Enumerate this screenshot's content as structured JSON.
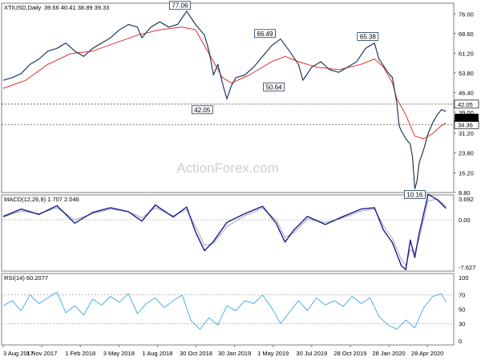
{
  "chart_data": {
    "type": "line",
    "watermark": "ActionForex.com",
    "price": {
      "symbol_title": "XTIUSD,Daily",
      "ohlc": "39.66 40.41 38.89 39.33",
      "yaxis": {
        "min": 8.8,
        "max": 80,
        "ticks": [
          "76.00",
          "68.60",
          "61.20",
          "53.80",
          "46.40",
          "39.00",
          "31.20",
          "23.80",
          "16.20",
          "8.80"
        ]
      },
      "last_price": "39.33",
      "levels": [
        {
          "value": 42.05,
          "label": "42.05"
        },
        {
          "value": 34.36,
          "label": "34.36"
        }
      ],
      "annotations": [
        {
          "label": "77.06",
          "x": 0.395,
          "value": 77.06,
          "anchor": "top"
        },
        {
          "label": "42.05",
          "x": 0.445,
          "value": 42.05,
          "anchor": "bottom"
        },
        {
          "label": "66.49",
          "x": 0.585,
          "value": 66.49,
          "anchor": "top"
        },
        {
          "label": "50.64",
          "x": 0.605,
          "value": 50.64,
          "anchor": "bottom"
        },
        {
          "label": "65.38",
          "x": 0.815,
          "value": 65.38,
          "anchor": "top"
        },
        {
          "label": "10.16",
          "x": 0.92,
          "value": 10.16,
          "anchor": "bottom"
        }
      ],
      "series": [
        {
          "name": "price",
          "points": [
            [
              0,
              51
            ],
            [
              0.02,
              52
            ],
            [
              0.04,
              53.5
            ],
            [
              0.06,
              57
            ],
            [
              0.08,
              59
            ],
            [
              0.1,
              62
            ],
            [
              0.12,
              63
            ],
            [
              0.14,
              65
            ],
            [
              0.16,
              62
            ],
            [
              0.18,
              60
            ],
            [
              0.2,
              63
            ],
            [
              0.22,
              65
            ],
            [
              0.24,
              67
            ],
            [
              0.26,
              70
            ],
            [
              0.28,
              72
            ],
            [
              0.3,
              71
            ],
            [
              0.31,
              67
            ],
            [
              0.33,
              71
            ],
            [
              0.35,
              73
            ],
            [
              0.37,
              71
            ],
            [
              0.39,
              72
            ],
            [
              0.41,
              77
            ],
            [
              0.43,
              72
            ],
            [
              0.45,
              68
            ],
            [
              0.46,
              62
            ],
            [
              0.47,
              53
            ],
            [
              0.48,
              57
            ],
            [
              0.49,
              50
            ],
            [
              0.5,
              44
            ],
            [
              0.51,
              49
            ],
            [
              0.52,
              52
            ],
            [
              0.54,
              53
            ],
            [
              0.56,
              56
            ],
            [
              0.58,
              60
            ],
            [
              0.6,
              64
            ],
            [
              0.62,
              66.5
            ],
            [
              0.64,
              62
            ],
            [
              0.66,
              57
            ],
            [
              0.67,
              51
            ],
            [
              0.69,
              56
            ],
            [
              0.71,
              58
            ],
            [
              0.73,
              55
            ],
            [
              0.75,
              54
            ],
            [
              0.77,
              56
            ],
            [
              0.79,
              58
            ],
            [
              0.81,
              63
            ],
            [
              0.83,
              65
            ],
            [
              0.84,
              59
            ],
            [
              0.86,
              54
            ],
            [
              0.87,
              52
            ],
            [
              0.88,
              42.5
            ],
            [
              0.885,
              34
            ],
            [
              0.89,
              32
            ],
            [
              0.9,
              29
            ],
            [
              0.91,
              27
            ],
            [
              0.915,
              22
            ],
            [
              0.92,
              10.2
            ],
            [
              0.925,
              13
            ],
            [
              0.93,
              20
            ],
            [
              0.94,
              25
            ],
            [
              0.95,
              31
            ],
            [
              0.96,
              35
            ],
            [
              0.97,
              38
            ],
            [
              0.98,
              40
            ],
            [
              0.99,
              39.3
            ]
          ]
        },
        {
          "name": "moving-average",
          "points": [
            [
              0,
              48
            ],
            [
              0.05,
              51
            ],
            [
              0.1,
              57
            ],
            [
              0.15,
              61
            ],
            [
              0.2,
              62
            ],
            [
              0.25,
              65
            ],
            [
              0.3,
              68
            ],
            [
              0.35,
              70
            ],
            [
              0.4,
              71
            ],
            [
              0.43,
              70
            ],
            [
              0.45,
              64
            ],
            [
              0.47,
              58
            ],
            [
              0.49,
              52
            ],
            [
              0.51,
              50
            ],
            [
              0.55,
              53
            ],
            [
              0.6,
              58
            ],
            [
              0.63,
              60
            ],
            [
              0.66,
              58
            ],
            [
              0.7,
              56
            ],
            [
              0.75,
              55
            ],
            [
              0.8,
              57
            ],
            [
              0.83,
              59
            ],
            [
              0.85,
              56
            ],
            [
              0.87,
              50
            ],
            [
              0.88,
              44
            ],
            [
              0.9,
              38
            ],
            [
              0.92,
              30
            ],
            [
              0.94,
              29
            ],
            [
              0.96,
              31
            ],
            [
              0.98,
              34
            ],
            [
              0.99,
              35
            ]
          ]
        }
      ]
    },
    "macd": {
      "title": "MACD(12,26,9) 1.707 2.046",
      "yaxis": {
        "min": -7.627,
        "max": 3.692,
        "ticks": [
          "3.692",
          "0.00",
          "-7.627"
        ]
      },
      "series": [
        {
          "name": "macd",
          "points": [
            [
              0,
              0.5
            ],
            [
              0.04,
              1.6
            ],
            [
              0.08,
              0.8
            ],
            [
              0.12,
              2.1
            ],
            [
              0.16,
              -0.5
            ],
            [
              0.2,
              1.1
            ],
            [
              0.24,
              1.8
            ],
            [
              0.28,
              1.2
            ],
            [
              0.31,
              -0.2
            ],
            [
              0.34,
              2.2
            ],
            [
              0.38,
              0.4
            ],
            [
              0.41,
              1.9
            ],
            [
              0.43,
              -1.8
            ],
            [
              0.45,
              -4.6
            ],
            [
              0.47,
              -3.2
            ],
            [
              0.5,
              -0.4
            ],
            [
              0.54,
              0.9
            ],
            [
              0.58,
              2.0
            ],
            [
              0.61,
              -0.5
            ],
            [
              0.63,
              -3.3
            ],
            [
              0.65,
              -1.5
            ],
            [
              0.68,
              0.5
            ],
            [
              0.72,
              -0.7
            ],
            [
              0.76,
              0.5
            ],
            [
              0.8,
              1.6
            ],
            [
              0.83,
              1.8
            ],
            [
              0.85,
              -1.5
            ],
            [
              0.87,
              -3.4
            ],
            [
              0.89,
              -6.8
            ],
            [
              0.9,
              -7.4
            ],
            [
              0.91,
              -3.0
            ],
            [
              0.92,
              -5.6
            ],
            [
              0.93,
              -2.0
            ],
            [
              0.95,
              3.8
            ],
            [
              0.97,
              3.0
            ],
            [
              0.99,
              1.7
            ]
          ]
        },
        {
          "name": "signal",
          "points": [
            [
              0,
              0.4
            ],
            [
              0.04,
              1.3
            ],
            [
              0.08,
              0.9
            ],
            [
              0.12,
              1.8
            ],
            [
              0.16,
              0
            ],
            [
              0.2,
              0.9
            ],
            [
              0.24,
              1.6
            ],
            [
              0.28,
              1.2
            ],
            [
              0.31,
              0.3
            ],
            [
              0.34,
              1.8
            ],
            [
              0.38,
              0.6
            ],
            [
              0.41,
              1.5
            ],
            [
              0.43,
              -1.0
            ],
            [
              0.45,
              -3.8
            ],
            [
              0.47,
              -3.5
            ],
            [
              0.5,
              -1.0
            ],
            [
              0.54,
              0.6
            ],
            [
              0.58,
              1.7
            ],
            [
              0.61,
              0
            ],
            [
              0.63,
              -2.6
            ],
            [
              0.65,
              -1.9
            ],
            [
              0.68,
              0.1
            ],
            [
              0.72,
              -0.4
            ],
            [
              0.76,
              0.3
            ],
            [
              0.8,
              1.3
            ],
            [
              0.83,
              1.6
            ],
            [
              0.85,
              -0.9
            ],
            [
              0.87,
              -2.8
            ],
            [
              0.89,
              -5.9
            ],
            [
              0.9,
              -6.8
            ],
            [
              0.91,
              -4.4
            ],
            [
              0.92,
              -4.9
            ],
            [
              0.93,
              -2.8
            ],
            [
              0.95,
              2.8
            ],
            [
              0.97,
              3.1
            ],
            [
              0.99,
              2.0
            ]
          ]
        }
      ]
    },
    "rsi": {
      "title": "RSI(14) 60.2077",
      "yaxis": {
        "min": 0,
        "max": 100,
        "ticks": [
          "100",
          "70",
          "50",
          "30",
          "0"
        ]
      },
      "series": [
        {
          "name": "rsi",
          "points": [
            [
              0,
              55
            ],
            [
              0.02,
              62
            ],
            [
              0.04,
              48
            ],
            [
              0.06,
              70
            ],
            [
              0.08,
              58
            ],
            [
              0.1,
              66
            ],
            [
              0.12,
              74
            ],
            [
              0.14,
              45
            ],
            [
              0.16,
              55
            ],
            [
              0.18,
              42
            ],
            [
              0.2,
              64
            ],
            [
              0.22,
              56
            ],
            [
              0.24,
              68
            ],
            [
              0.26,
              60
            ],
            [
              0.28,
              72
            ],
            [
              0.3,
              44
            ],
            [
              0.32,
              58
            ],
            [
              0.34,
              66
            ],
            [
              0.36,
              52
            ],
            [
              0.38,
              62
            ],
            [
              0.4,
              70
            ],
            [
              0.42,
              34
            ],
            [
              0.44,
              22
            ],
            [
              0.46,
              38
            ],
            [
              0.48,
              28
            ],
            [
              0.5,
              55
            ],
            [
              0.52,
              48
            ],
            [
              0.54,
              62
            ],
            [
              0.56,
              58
            ],
            [
              0.58,
              70
            ],
            [
              0.6,
              52
            ],
            [
              0.62,
              30
            ],
            [
              0.64,
              46
            ],
            [
              0.66,
              62
            ],
            [
              0.68,
              48
            ],
            [
              0.7,
              66
            ],
            [
              0.72,
              56
            ],
            [
              0.74,
              62
            ],
            [
              0.76,
              54
            ],
            [
              0.78,
              68
            ],
            [
              0.8,
              58
            ],
            [
              0.82,
              66
            ],
            [
              0.84,
              40
            ],
            [
              0.86,
              28
            ],
            [
              0.88,
              22
            ],
            [
              0.9,
              35
            ],
            [
              0.92,
              24
            ],
            [
              0.94,
              52
            ],
            [
              0.96,
              68
            ],
            [
              0.98,
              72
            ],
            [
              0.99,
              60
            ]
          ]
        }
      ]
    },
    "x_ticks": [
      "3 Aug 2017",
      "1 Nov 2017",
      "1 Feb 2018",
      "3 May 2018",
      "1 Aug 2018",
      "30 Oct 2018",
      "30 Jan 2019",
      "1 May 2019",
      "30 Jul 2019",
      "28 Oct 2019",
      "28 Jan 2020",
      "28 Apr 2020"
    ]
  }
}
